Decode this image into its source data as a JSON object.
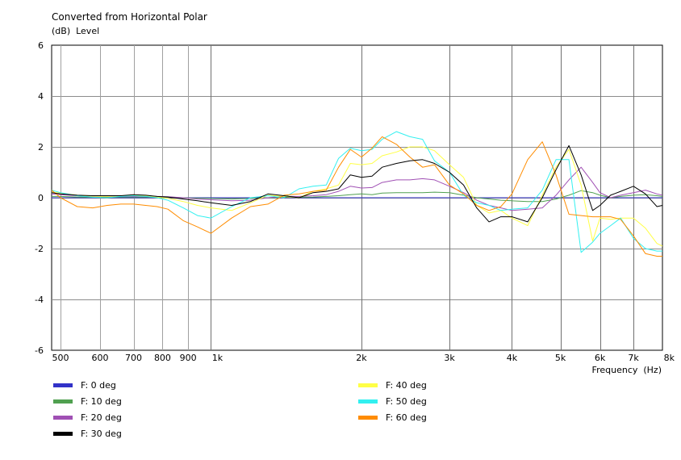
{
  "chart_data": {
    "type": "line",
    "title": "Converted from Horizontal Polar",
    "ylabel": "(dB)  Level",
    "xlabel": "Frequency  (Hz)",
    "x_scale": "log",
    "xlim": [
      480,
      8000
    ],
    "ylim": [
      -6,
      6
    ],
    "y_ticks": [
      {
        "value": 6,
        "label": "6"
      },
      {
        "value": 4,
        "label": "4"
      },
      {
        "value": 2,
        "label": "2"
      },
      {
        "value": 0,
        "label": "0"
      },
      {
        "value": -2,
        "label": "-2"
      },
      {
        "value": -4,
        "label": "-4"
      },
      {
        "value": -6,
        "label": "-6"
      }
    ],
    "x_ticks": [
      {
        "value": 500,
        "label": "500"
      },
      {
        "value": 600,
        "label": "600"
      },
      {
        "value": 700,
        "label": "700"
      },
      {
        "value": 800,
        "label": "800"
      },
      {
        "value": 900,
        "label": "900"
      },
      {
        "value": 1000,
        "label": "1k"
      },
      {
        "value": 2000,
        "label": "2k"
      },
      {
        "value": 3000,
        "label": "3k"
      },
      {
        "value": 4000,
        "label": "4k"
      },
      {
        "value": 5000,
        "label": "5k"
      },
      {
        "value": 6000,
        "label": "6k"
      },
      {
        "value": 7000,
        "label": "7k"
      },
      {
        "value": 8000,
        "label": "8k"
      }
    ],
    "grid": true,
    "legend_position": "bottom",
    "x": [
      480,
      500,
      540,
      580,
      620,
      660,
      700,
      740,
      780,
      820,
      880,
      940,
      1000,
      1100,
      1200,
      1300,
      1400,
      1500,
      1600,
      1700,
      1800,
      1900,
      2000,
      2100,
      2200,
      2350,
      2500,
      2650,
      2800,
      3000,
      3200,
      3400,
      3600,
      3800,
      4000,
      4300,
      4600,
      4900,
      5200,
      5500,
      5800,
      6000,
      6300,
      6600,
      7000,
      7400,
      7800,
      8000
    ],
    "series": [
      {
        "name": "F: 0 deg",
        "color": "#3232c8",
        "values": [
          0.0,
          0.0,
          0.0,
          0.0,
          0.0,
          0.0,
          0.0,
          0.0,
          0.0,
          0.0,
          0.0,
          0.0,
          0.0,
          0.0,
          0.0,
          0.0,
          0.0,
          0.0,
          0.0,
          0.0,
          0.0,
          0.0,
          0.0,
          0.0,
          0.0,
          0.0,
          0.0,
          0.0,
          0.0,
          0.0,
          0.0,
          0.0,
          0.0,
          0.0,
          0.0,
          0.0,
          0.0,
          0.0,
          0.0,
          0.0,
          0.0,
          0.0,
          0.0,
          0.0,
          0.0,
          0.0,
          0.0,
          0.0
        ]
      },
      {
        "name": "F: 10 deg",
        "color": "#50a050",
        "values": [
          0.05,
          0.05,
          0.03,
          0.02,
          0.02,
          0.03,
          0.03,
          0.03,
          0.02,
          0.02,
          0.0,
          -0.02,
          -0.03,
          -0.05,
          -0.03,
          0.0,
          0.02,
          0.02,
          0.03,
          0.05,
          0.08,
          0.12,
          0.15,
          0.12,
          0.18,
          0.2,
          0.2,
          0.2,
          0.22,
          0.2,
          0.1,
          0.0,
          -0.05,
          -0.1,
          -0.12,
          -0.15,
          -0.15,
          -0.05,
          0.1,
          0.28,
          0.2,
          0.1,
          0.0,
          0.05,
          0.1,
          0.12,
          0.08,
          0.05
        ]
      },
      {
        "name": "F: 20 deg",
        "color": "#a050b4",
        "values": [
          0.15,
          0.12,
          0.08,
          0.05,
          0.05,
          0.05,
          0.05,
          0.06,
          0.05,
          0.04,
          0.0,
          -0.05,
          -0.08,
          -0.12,
          -0.1,
          0.0,
          0.05,
          0.05,
          0.08,
          0.12,
          0.25,
          0.45,
          0.38,
          0.4,
          0.6,
          0.7,
          0.7,
          0.75,
          0.7,
          0.45,
          0.2,
          -0.1,
          -0.3,
          -0.4,
          -0.5,
          -0.45,
          -0.4,
          0.1,
          0.7,
          1.2,
          0.6,
          0.2,
          0.0,
          0.1,
          0.2,
          0.3,
          0.15,
          0.1
        ]
      },
      {
        "name": "F: 30 deg",
        "color": "#000000",
        "values": [
          0.2,
          0.15,
          0.1,
          0.08,
          0.08,
          0.08,
          0.12,
          0.1,
          0.05,
          0.03,
          -0.05,
          -0.12,
          -0.2,
          -0.3,
          -0.15,
          0.15,
          0.08,
          0.0,
          0.2,
          0.25,
          0.35,
          0.9,
          0.8,
          0.85,
          1.2,
          1.35,
          1.45,
          1.5,
          1.35,
          1.0,
          0.5,
          -0.4,
          -0.95,
          -0.75,
          -0.75,
          -0.95,
          0.0,
          1.1,
          2.05,
          0.9,
          -0.5,
          -0.3,
          0.1,
          0.25,
          0.45,
          0.15,
          -0.35,
          -0.3
        ]
      },
      {
        "name": "F: 40 deg",
        "color": "#ffff46",
        "values": [
          0.22,
          0.18,
          0.1,
          0.06,
          0.05,
          0.07,
          0.1,
          0.08,
          0.02,
          -0.02,
          -0.15,
          -0.3,
          -0.4,
          -0.5,
          -0.2,
          0.1,
          0.05,
          0.0,
          0.25,
          0.35,
          0.5,
          1.35,
          1.3,
          1.35,
          1.65,
          1.8,
          2.0,
          2.0,
          1.85,
          1.3,
          0.8,
          -0.3,
          -0.6,
          -0.5,
          -0.8,
          -1.1,
          0.1,
          1.2,
          1.9,
          0.5,
          -1.7,
          -0.8,
          -0.85,
          -0.8,
          -0.8,
          -1.2,
          -1.8,
          -1.9
        ]
      },
      {
        "name": "F: 50 deg",
        "color": "#32f0f0",
        "values": [
          0.3,
          0.2,
          0.08,
          0.02,
          0.0,
          0.05,
          0.08,
          0.05,
          0.0,
          -0.1,
          -0.4,
          -0.7,
          -0.8,
          -0.35,
          0.0,
          0.08,
          0.0,
          0.35,
          0.45,
          0.5,
          1.55,
          1.95,
          1.85,
          1.9,
          2.3,
          2.6,
          2.4,
          2.3,
          1.45,
          1.0,
          0.1,
          -0.2,
          -0.3,
          -0.5,
          -0.45,
          -0.4,
          0.3,
          1.5,
          1.5,
          -2.15,
          -1.75,
          -1.4,
          -1.1,
          -0.8,
          -1.6,
          -2.0,
          -2.1,
          -2.1
        ]
      },
      {
        "name": "F: 60 deg",
        "color": "#ff8c00",
        "values": [
          0.3,
          0.0,
          -0.35,
          -0.4,
          -0.3,
          -0.25,
          -0.25,
          -0.3,
          -0.35,
          -0.45,
          -0.9,
          -1.15,
          -1.4,
          -0.8,
          -0.35,
          -0.25,
          0.1,
          0.15,
          0.25,
          0.3,
          1.2,
          1.9,
          1.6,
          1.95,
          2.4,
          2.1,
          1.6,
          1.2,
          1.3,
          0.5,
          0.15,
          -0.3,
          -0.5,
          -0.35,
          0.15,
          1.5,
          2.2,
          0.9,
          -0.65,
          -0.7,
          -0.75,
          -0.75,
          -0.75,
          -0.85,
          -1.5,
          -2.2,
          -2.3,
          -2.3
        ]
      }
    ]
  }
}
